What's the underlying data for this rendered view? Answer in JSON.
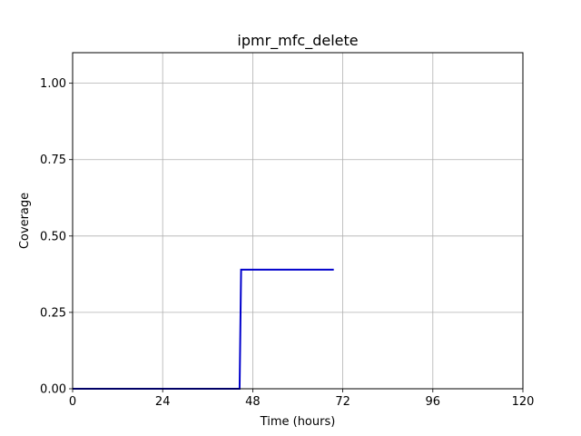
{
  "chart_data": {
    "type": "line",
    "title": "ipmr_mfc_delete",
    "xlabel": "Time (hours)",
    "ylabel": "Coverage",
    "xlim": [
      0,
      120
    ],
    "ylim": [
      0,
      1.1
    ],
    "x_ticks": [
      0,
      24,
      48,
      72,
      96,
      120
    ],
    "x_tick_labels": [
      "0",
      "24",
      "48",
      "72",
      "96",
      "120"
    ],
    "y_ticks": [
      0,
      0.25,
      0.5,
      0.75,
      1.0
    ],
    "y_tick_labels": [
      "0.00",
      "0.25",
      "0.50",
      "0.75",
      "1.00"
    ],
    "grid": true,
    "legend": "none",
    "series": [
      {
        "color": "#0000cc",
        "x": [
          0,
          44.5,
          44.9,
          69.6
        ],
        "y": [
          0,
          0,
          0.39,
          0.39
        ]
      }
    ]
  }
}
